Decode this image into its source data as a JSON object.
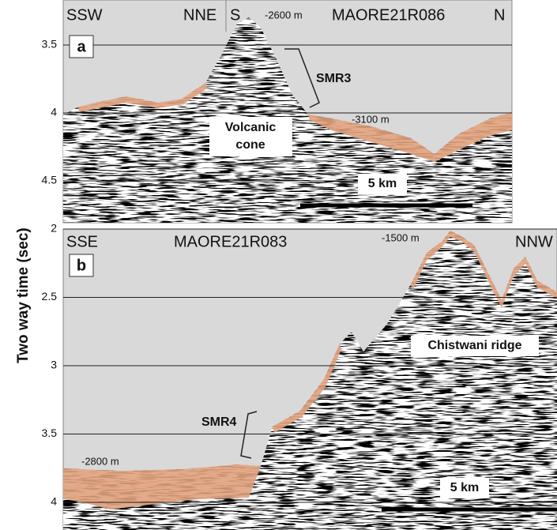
{
  "y_axis_label": "Two way time (sec)",
  "panels": [
    {
      "label": "a",
      "ticks": [
        3.5,
        4,
        4.5
      ],
      "section_1_left": "SSW",
      "section_1_right": "NNE",
      "section_2_left": "S",
      "section_2_right": "N",
      "profile": "MAORE21R086",
      "depth_top": "-2600 m",
      "depth_basin": "-3100 m",
      "unit": "SMR3",
      "feature": [
        "Volcanic",
        "cone"
      ],
      "scale_bar": "5 km"
    },
    {
      "label": "b",
      "ticks": [
        2,
        2.5,
        3,
        3.5,
        4
      ],
      "section_left": "SSE",
      "section_right": "NNW",
      "profile": "MAORE21R083",
      "depth_top": "-1500 m",
      "depth_basin": "-2800 m",
      "unit": "SMR4",
      "feature": "Chistwani ridge",
      "scale_bar": "5 km"
    }
  ]
}
